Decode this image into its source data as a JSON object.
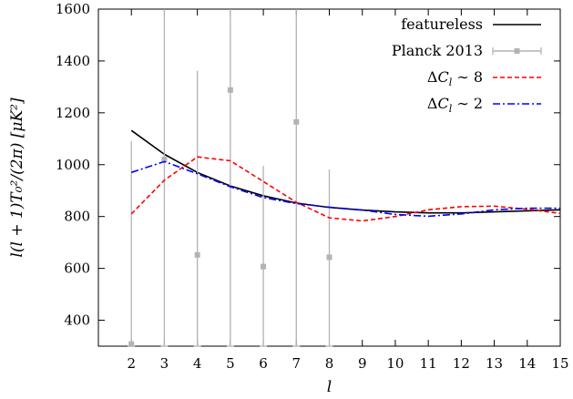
{
  "chart_data": {
    "type": "line",
    "xlabel": "l",
    "ylabel": "l(l + 1)T₀²/(2π) [μK²]",
    "xlim": [
      1,
      15
    ],
    "ylim": [
      300,
      1600
    ],
    "x_ticks": [
      "2",
      "3",
      "4",
      "5",
      "6",
      "7",
      "8",
      "9",
      "10",
      "11",
      "12",
      "13",
      "14",
      "15"
    ],
    "y_ticks": [
      "400",
      "600",
      "800",
      "1000",
      "1200",
      "1400",
      "1600"
    ],
    "grid": false,
    "legend_position": "top-right",
    "series": [
      {
        "name": "featureless",
        "color": "#000000",
        "style": "solid",
        "x": [
          2,
          3,
          4,
          5,
          6,
          7,
          8,
          9,
          10,
          11,
          12,
          13,
          14,
          15
        ],
        "y": [
          1132,
          1040,
          970,
          918,
          880,
          852,
          835,
          825,
          818,
          814,
          814,
          818,
          822,
          826
        ]
      },
      {
        "name": "Planck 2013",
        "color": "#b3b3b3",
        "style": "errorbar",
        "x": [
          2,
          3,
          4,
          5,
          6,
          7,
          8
        ],
        "y": [
          308,
          1020,
          652,
          1288,
          607,
          1165,
          643
        ],
        "yerr_low": [
          0,
          458,
          252,
          398,
          232,
          395,
          220
        ],
        "yerr_high": [
          783,
          580,
          710,
          405,
          388,
          435,
          338
        ]
      },
      {
        "name": "ΔC_l ~ 8",
        "legend_math": {
          "delta": "Δ",
          "base": "C",
          "sub": "l",
          "rel": "∼",
          "val": "8"
        },
        "color": "#ff0000",
        "style": "dashed",
        "x": [
          2,
          3,
          4,
          5,
          6,
          7,
          8,
          9,
          10,
          11,
          12,
          13,
          14,
          15
        ],
        "y": [
          810,
          940,
          1030,
          1015,
          935,
          855,
          795,
          783,
          800,
          826,
          838,
          840,
          828,
          812
        ]
      },
      {
        "name": "ΔC_l ~ 2",
        "legend_math": {
          "delta": "Δ",
          "base": "C",
          "sub": "l",
          "rel": "∼",
          "val": "2"
        },
        "color": "#0000ff",
        "style": "dash-dot",
        "x": [
          2,
          3,
          4,
          5,
          6,
          7,
          8,
          9,
          10,
          11,
          12,
          13,
          14,
          15
        ],
        "y": [
          970,
          1012,
          965,
          915,
          873,
          850,
          836,
          825,
          808,
          801,
          810,
          826,
          832,
          832
        ]
      }
    ]
  }
}
